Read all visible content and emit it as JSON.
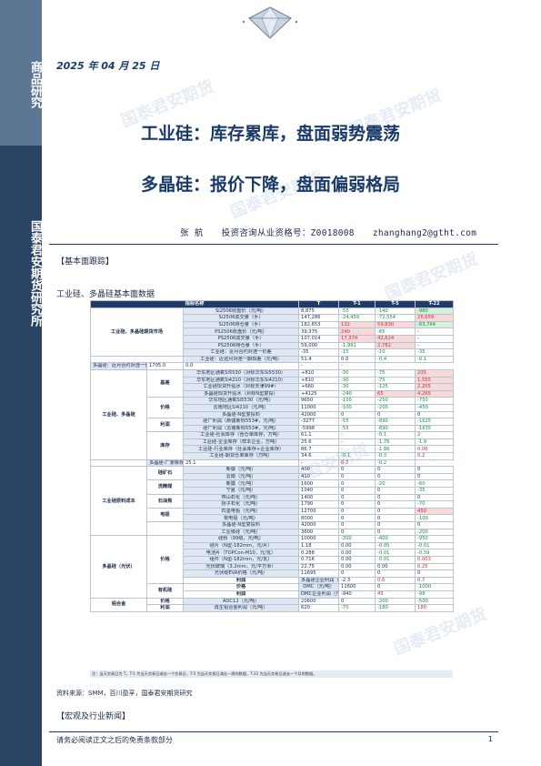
{
  "sidebar": {
    "top_label": "商品研究",
    "bottom_label": "国泰君安期货研究所"
  },
  "header": {
    "date": "2025 年 04 月 25 日"
  },
  "titles": {
    "line1": "工业硅：库存累库，盘面弱势震荡",
    "line2": "多晶硅：报价下降，盘面偏弱格局"
  },
  "author": {
    "name": "张  航",
    "license": "投资咨询从业资格号：Z0018008",
    "email": "zhanghang2@gtht.com"
  },
  "section_basic": "【基本面跟踪】",
  "table_caption": "工业硅、多晶硅基本面数据",
  "table": {
    "headers": [
      "指标名称",
      "T",
      "T-1",
      "T-5",
      "T-22"
    ],
    "rows": [
      {
        "g": "工业硅、多晶硅期货市场",
        "gs": 7,
        "s": "",
        "ss": 0,
        "n": "Si2506收盘价（元/吨）",
        "v": [
          "8,875",
          "-55",
          "-140",
          "-980"
        ],
        "c": [
          "",
          "neg",
          "neg",
          "negbg"
        ]
      },
      {
        "n": "Si2506成交量（手）",
        "v": [
          "147,286",
          "-24,459",
          "-72,554",
          "26,659"
        ],
        "c": [
          "",
          "neg",
          "neg",
          "posbg"
        ]
      },
      {
        "n": "Si2506持仓量（手）",
        "v": [
          "182,653",
          "132",
          "59,830",
          "-63,764"
        ],
        "c": [
          "",
          "posbg",
          "posbg",
          "negbg"
        ]
      },
      {
        "n": "PS2506收盘价（元/吨）",
        "v": [
          "39,375",
          "240",
          "-65",
          "-"
        ],
        "c": [
          "",
          "posbg",
          "neg",
          ""
        ]
      },
      {
        "n": "PS2506成交量（手）",
        "v": [
          "107,014",
          "17,374",
          "42,624",
          "-"
        ],
        "c": [
          "",
          "posbg",
          "posbg",
          ""
        ]
      },
      {
        "n": "PS2506持仓量（手）",
        "v": [
          "59,000",
          "-1,991",
          "2,782",
          "-"
        ],
        "c": [
          "",
          "neg",
          "posbg",
          ""
        ]
      },
      {
        "n": "工业硅：近月合约对连一价差",
        "v": [
          "-35",
          "-15",
          "-10",
          "-35"
        ],
        "c": [
          "",
          "neg",
          "neg",
          "neg"
        ]
      },
      {
        "g": "",
        "gs": 0,
        "s": "",
        "ss": 0,
        "n": "工业硅：近远月对连一期现差（元/吨）",
        "v": [
          "51.4",
          "0.0",
          "-0.4",
          "-0.1"
        ],
        "c": [
          "",
          "",
          "neg",
          "neg"
        ],
        "gskip": true
      },
      {
        "n": "多晶硅：近月合约对连一价差",
        "v": [
          "1705.0",
          "0.0",
          "-",
          "-"
        ],
        "c": [
          "",
          "",
          "",
          ""
        ]
      },
      {
        "g": "工业硅、多晶硅",
        "gs": 13,
        "s": "基差",
        "ss": 4,
        "n": "华东地区通氧Si5530（对标华东Si5530）",
        "v": [
          "+810",
          "-30",
          "-75",
          "235"
        ],
        "c": [
          "",
          "neg",
          "neg",
          "posbg"
        ]
      },
      {
        "n": "华东地区通氧Si4210（对标华东Si4210）",
        "v": [
          "+810",
          "-30",
          "-75",
          "1,555"
        ],
        "c": [
          "",
          "neg",
          "neg",
          "posbg"
        ]
      },
      {
        "n": "工业硅现货升贴水（对标天津99#）",
        "v": [
          "+660",
          "-30",
          "-125",
          "2,205"
        ],
        "c": [
          "",
          "neg",
          "neg",
          "posbg"
        ]
      },
      {
        "n": "多晶硅现货升贴水（对标N型复投）",
        "v": [
          "+4125",
          "-240",
          "65",
          "4,265"
        ],
        "c": [
          "",
          "neg",
          "posbg",
          "posbg"
        ]
      },
      {
        "s": "价格",
        "ss": 3,
        "n": "华东地区通氧Si5530（元/吨）",
        "v": [
          "9650",
          "-100",
          "-250",
          "-750"
        ],
        "c": [
          "",
          "neg",
          "neg",
          "neg"
        ]
      },
      {
        "n": "云南地区Si4210（元/吨）",
        "v": [
          "11000",
          "-100",
          "-200",
          "-450"
        ],
        "c": [
          "",
          "neg",
          "neg",
          "neg"
        ]
      },
      {
        "n": "多晶硅-N型复投料",
        "v": [
          "42000",
          "0",
          "0",
          "0"
        ],
        "c": [
          "",
          "",
          "",
          ""
        ]
      },
      {
        "s": "利润",
        "ss": 2,
        "n": "硅厂利润（新疆新标553#，元/吨）",
        "v": [
          "-3277",
          "-55",
          "-890",
          "-1625"
        ],
        "c": [
          "",
          "neg",
          "neg",
          "neg"
        ]
      },
      {
        "n": "硅厂利润（云南新标553#，元/吨）",
        "v": [
          "-5998",
          "-55",
          "-890",
          "-1635"
        ],
        "c": [
          "",
          "neg",
          "neg",
          "neg"
        ]
      },
      {
        "s": "库存",
        "ss": 4,
        "n": "工业硅-社会库存（含仓单库存，万吨）",
        "v": [
          "61.1",
          "-",
          "-0.1",
          "2"
        ],
        "c": [
          "",
          "",
          "neg",
          "pos"
        ]
      },
      {
        "n": "工业硅-企业库存（样本企业，万吨）",
        "v": [
          "25.6",
          "-",
          "-1.76",
          "-1.9"
        ],
        "c": [
          "",
          "",
          "neg",
          "neg"
        ]
      },
      {
        "n": "工业硅-行业库存（社会库存+企业库存）",
        "v": [
          "86.7",
          "-",
          "-1.86",
          "0.06"
        ],
        "c": [
          "",
          "",
          "neg",
          "pos"
        ]
      },
      {
        "n": "工业硅-期货仓单库存（万吨）",
        "v": [
          "34.6",
          "-0.1",
          "-0.3",
          "0.2"
        ],
        "c": [
          "",
          "neg",
          "neg",
          "pos"
        ]
      },
      {
        "s": "",
        "ss": 1,
        "n": "多晶硅-厂家库存（万吨）",
        "v": [
          "25.1",
          "-",
          "0.7",
          "-0.2"
        ],
        "c": [
          "",
          "",
          "pos",
          "neg"
        ]
      },
      {
        "g": "工业硅原料成本",
        "gs": 10,
        "s": "硅矿石",
        "ss": 2,
        "n": "新疆（元/吨）",
        "v": [
          "400",
          "0",
          "0",
          "0"
        ],
        "c": [
          "",
          "",
          "",
          ""
        ]
      },
      {
        "n": "云南（元/吨）",
        "v": [
          "410",
          "0",
          "0",
          "0"
        ],
        "c": [
          "",
          "",
          "",
          ""
        ]
      },
      {
        "s": "洗精煤",
        "ss": 2,
        "n": "新疆（元/吨）",
        "v": [
          "1600",
          "0",
          "-20",
          "-60"
        ],
        "c": [
          "",
          "",
          "neg",
          "neg"
        ]
      },
      {
        "n": "宁夏（元/吨）",
        "v": [
          "1040",
          "0",
          "0",
          "-35"
        ],
        "c": [
          "",
          "",
          "",
          "neg"
        ]
      },
      {
        "s": "石油焦",
        "ss": 2,
        "n": "燕山石化（元/吨）",
        "v": [
          "1400",
          "0",
          "0",
          "0"
        ],
        "c": [
          "",
          "",
          "",
          ""
        ]
      },
      {
        "n": "扬子石化（元/吨）",
        "v": [
          "1790",
          "0",
          "0",
          "-70"
        ],
        "c": [
          "",
          "",
          "",
          "neg"
        ]
      },
      {
        "s": "电极",
        "ss": 2,
        "n": "石墨电极（元/吨）",
        "v": [
          "12700",
          "0",
          "0",
          "450"
        ],
        "c": [
          "",
          "",
          "",
          "posbg"
        ]
      },
      {
        "n": "炭电极（元/吨）",
        "v": [
          "8000",
          "0",
          "0",
          "-100"
        ],
        "c": [
          "",
          "",
          "",
          "neg"
        ]
      },
      {
        "s": "",
        "ss": 2,
        "n": "多晶硅-N型复投料",
        "v": [
          "42000",
          "0",
          "0",
          "0"
        ],
        "c": [
          "",
          "",
          "",
          ""
        ]
      },
      {
        "n": "工业级硅（元/吨）",
        "v": [
          "3600",
          "0",
          "0",
          "-200"
        ],
        "c": [
          "",
          "",
          "",
          "neg"
        ]
      },
      {
        "g": "多晶硅（光伏）",
        "gs": 9,
        "s": "价格",
        "ss": 7,
        "n": "硅粉（99级，元/吨）",
        "v": [
          "10000",
          "-300",
          "-400",
          "-950"
        ],
        "c": [
          "",
          "neg",
          "neg",
          "neg"
        ]
      },
      {
        "n": "硅片（N型-182mm，元/片）",
        "v": [
          "1.18",
          "0.00",
          "-0.05",
          "-0.01"
        ],
        "c": [
          "",
          "",
          "neg",
          "neg"
        ]
      },
      {
        "n": "电池片（TOPCon-M10，元/瓦）",
        "v": [
          "0.288",
          "0.00",
          "-0.01",
          "-0.59"
        ],
        "c": [
          "",
          "",
          "neg",
          "neg"
        ]
      },
      {
        "n": "组件（N型-182mm，元/瓦）",
        "v": [
          "0.716",
          "0.00",
          "-0.01",
          "0.003"
        ],
        "c": [
          "",
          "",
          "neg",
          "pos"
        ]
      },
      {
        "n": "光伏玻璃（3.2mm，元/平方米）",
        "v": [
          "22.75",
          "0.00",
          "0.00",
          "0.25"
        ],
        "c": [
          "",
          "",
          "",
          "pos"
        ]
      },
      {
        "n": "光伏级EVA价格（元/吨）",
        "v": [
          "11695",
          "0",
          "0",
          "0"
        ],
        "c": [
          "",
          "",
          "",
          ""
        ]
      },
      {
        "s": "利润",
        "ss": 1,
        "n": "多晶硅企业利润（元/千克）",
        "v": [
          "-2.3",
          "0.6",
          "0.7",
          "1.4"
        ],
        "c": [
          "",
          "pos",
          "pos",
          "pos"
        ]
      },
      {
        "g": "有机硅",
        "gs": 2,
        "s": "价格",
        "ss": 1,
        "n": "DMC（元/吨）",
        "v": [
          "11600",
          "0",
          "-1000",
          "-3000"
        ],
        "c": [
          "",
          "",
          "neg",
          "neg"
        ]
      },
      {
        "s": "利润",
        "ss": 1,
        "n": "DMC企业利润（元/吨）",
        "v": [
          "-940",
          "45",
          "-98",
          "-2238"
        ],
        "c": [
          "",
          "pos",
          "neg",
          "neg"
        ]
      },
      {
        "g": "铝合金",
        "gs": 2,
        "s": "价格",
        "ss": 1,
        "n": "ADC12（元/吨）",
        "v": [
          "20600",
          "0",
          "-200",
          "-500"
        ],
        "c": [
          "",
          "",
          "neg",
          "neg"
        ]
      },
      {
        "s": "利润",
        "ss": 1,
        "n": "再生铝合金利润（元/吨）",
        "v": [
          "620",
          "-70",
          "-180",
          "180"
        ],
        "c": [
          "",
          "neg",
          "neg",
          "pos"
        ]
      }
    ]
  },
  "table_note": "注：当天交易日为 T，T-1 为当天交易日减去一个交易日，T-5 为当天交易日减去一周的数据，T-22 为当天交易日减去一个月的数据。",
  "source": "资料来源：SMM，百川盈孚，国泰君安期货研究",
  "section_macro": "【宏观及行业新闻】",
  "footer": {
    "disclaimer": "请务必阅读正文之后的免责条款部分",
    "page": "1"
  },
  "watermark": "国泰君安期货",
  "colors": {
    "navy": "#1a3a6a",
    "header_bg": "#203c66",
    "positive": "#d42a2a",
    "negative": "#1a8a3a"
  }
}
